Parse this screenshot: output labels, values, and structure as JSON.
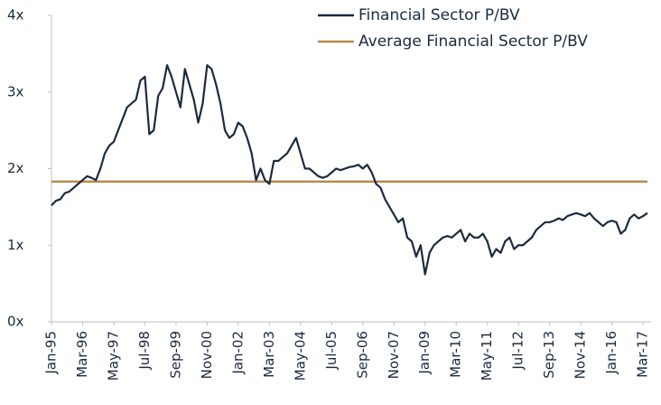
{
  "chart_data": {
    "type": "line",
    "categories": [
      "Jan-95",
      null,
      null,
      null,
      null,
      null,
      null,
      "Mar-96",
      null,
      null,
      null,
      null,
      null,
      null,
      "May-97",
      null,
      null,
      null,
      null,
      null,
      null,
      "Jul-98",
      null,
      null,
      null,
      null,
      null,
      null,
      "Sep-99",
      null,
      null,
      null,
      null,
      null,
      null,
      "Nov-00",
      null,
      null,
      null,
      null,
      null,
      null,
      "Jan-02",
      null,
      null,
      null,
      null,
      null,
      null,
      "Mar-03",
      null,
      null,
      null,
      null,
      null,
      null,
      "May-04",
      null,
      null,
      null,
      null,
      null,
      null,
      "Jul-05",
      null,
      null,
      null,
      null,
      null,
      null,
      "Sep-06",
      null,
      null,
      null,
      null,
      null,
      null,
      "Nov-07",
      null,
      null,
      null,
      null,
      null,
      null,
      "Jan-09",
      null,
      null,
      null,
      null,
      null,
      null,
      "Mar-10",
      null,
      null,
      null,
      null,
      null,
      null,
      "May-11",
      null,
      null,
      null,
      null,
      null,
      null,
      "Jul-12",
      null,
      null,
      null,
      null,
      null,
      null,
      "Sep-13",
      null,
      null,
      null,
      null,
      null,
      null,
      "Nov-14",
      null,
      null,
      null,
      null,
      null,
      null,
      "Jan-16",
      null,
      null,
      null,
      null,
      null,
      null,
      "Mar-17",
      null
    ],
    "series": [
      {
        "name": "Financial Sector P/BV",
        "color": "#1c2a3e",
        "values": [
          1.52,
          1.58,
          1.6,
          1.68,
          1.7,
          1.75,
          1.8,
          1.85,
          1.9,
          1.88,
          1.85,
          2.0,
          2.2,
          2.3,
          2.35,
          2.5,
          2.65,
          2.8,
          2.85,
          2.9,
          3.15,
          3.2,
          2.45,
          2.5,
          2.95,
          3.05,
          3.35,
          3.2,
          3.0,
          2.8,
          3.3,
          3.1,
          2.9,
          2.6,
          2.85,
          3.35,
          3.3,
          3.1,
          2.85,
          2.5,
          2.4,
          2.45,
          2.6,
          2.55,
          2.4,
          2.2,
          1.85,
          2.0,
          1.85,
          1.8,
          2.1,
          2.1,
          2.15,
          2.2,
          2.3,
          2.4,
          2.2,
          2.0,
          2.0,
          1.95,
          1.9,
          1.88,
          1.9,
          1.95,
          2.0,
          1.98,
          2.0,
          2.02,
          2.03,
          2.05,
          2.0,
          2.05,
          1.95,
          1.8,
          1.75,
          1.6,
          1.5,
          1.4,
          1.3,
          1.35,
          1.1,
          1.05,
          0.85,
          1.0,
          0.62,
          0.9,
          1.0,
          1.05,
          1.1,
          1.12,
          1.1,
          1.15,
          1.2,
          1.05,
          1.15,
          1.1,
          1.1,
          1.15,
          1.05,
          0.85,
          0.95,
          0.9,
          1.05,
          1.1,
          0.95,
          1.0,
          1.0,
          1.05,
          1.1,
          1.2,
          1.25,
          1.3,
          1.3,
          1.32,
          1.35,
          1.33,
          1.38,
          1.4,
          1.42,
          1.4,
          1.38,
          1.42,
          1.35,
          1.3,
          1.25,
          1.3,
          1.32,
          1.3,
          1.15,
          1.2,
          1.35,
          1.4,
          1.35,
          1.38,
          1.42
        ]
      },
      {
        "name": "Average Financial Sector P/BV",
        "color": "#b58a4a",
        "values": [
          1.83,
          1.83,
          1.83,
          1.83,
          1.83,
          1.83,
          1.83,
          1.83,
          1.83,
          1.83,
          1.83,
          1.83,
          1.83,
          1.83,
          1.83,
          1.83,
          1.83,
          1.83,
          1.83,
          1.83,
          1.83,
          1.83,
          1.83,
          1.83,
          1.83,
          1.83,
          1.83,
          1.83,
          1.83,
          1.83,
          1.83,
          1.83,
          1.83,
          1.83,
          1.83,
          1.83,
          1.83,
          1.83,
          1.83,
          1.83,
          1.83,
          1.83,
          1.83,
          1.83,
          1.83,
          1.83,
          1.83,
          1.83,
          1.83,
          1.83,
          1.83,
          1.83,
          1.83,
          1.83,
          1.83,
          1.83,
          1.83,
          1.83,
          1.83,
          1.83,
          1.83,
          1.83,
          1.83,
          1.83,
          1.83,
          1.83,
          1.83,
          1.83,
          1.83,
          1.83,
          1.83,
          1.83,
          1.83,
          1.83,
          1.83,
          1.83,
          1.83,
          1.83,
          1.83,
          1.83,
          1.83,
          1.83,
          1.83,
          1.83,
          1.83,
          1.83,
          1.83,
          1.83,
          1.83,
          1.83,
          1.83,
          1.83,
          1.83,
          1.83,
          1.83,
          1.83,
          1.83,
          1.83,
          1.83,
          1.83,
          1.83,
          1.83,
          1.83,
          1.83,
          1.83,
          1.83,
          1.83,
          1.83,
          1.83,
          1.83,
          1.83,
          1.83,
          1.83,
          1.83,
          1.83,
          1.83,
          1.83,
          1.83,
          1.83,
          1.83,
          1.83,
          1.83,
          1.83,
          1.83,
          1.83,
          1.83,
          1.83,
          1.83,
          1.83,
          1.83,
          1.83,
          1.83,
          1.83,
          1.83,
          1.83
        ]
      }
    ],
    "ylim": [
      0,
      4
    ],
    "yticks": [
      {
        "value": 0,
        "label": "0x"
      },
      {
        "value": 1,
        "label": "1x"
      },
      {
        "value": 2,
        "label": "2x"
      },
      {
        "value": 3,
        "label": "3x"
      },
      {
        "value": 4,
        "label": "4x"
      }
    ],
    "legend": "top-right"
  }
}
